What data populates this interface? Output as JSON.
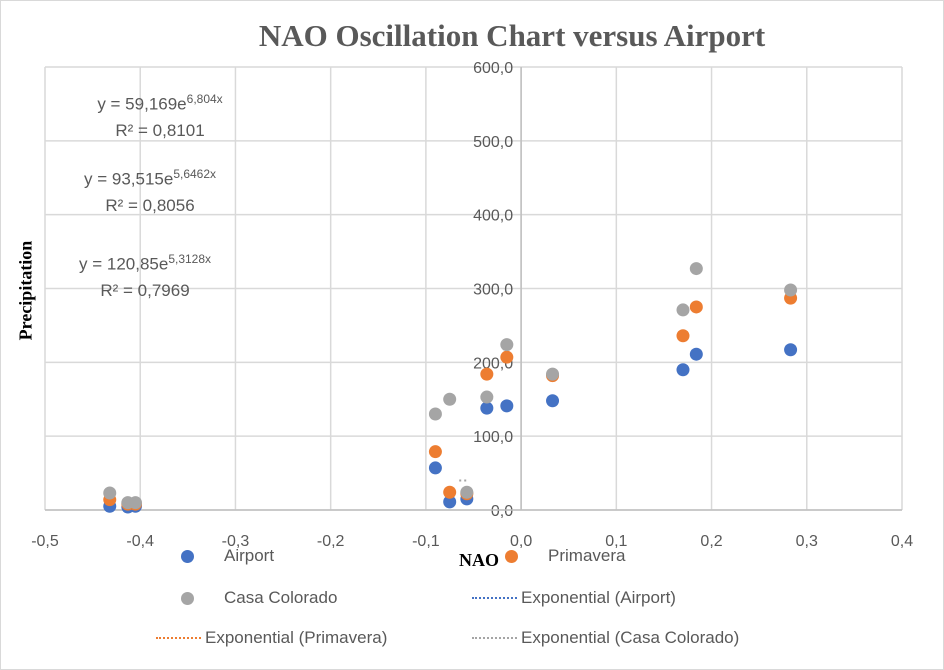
{
  "chart_data": {
    "type": "scatter",
    "title": "NAO Oscillation Chart versus Airport",
    "xlabel": "NAO",
    "ylabel": "Precipitation",
    "xlim": [
      -0.5,
      0.4
    ],
    "ylim": [
      0,
      600
    ],
    "x_ticks": [
      "-0,5",
      "-0,4",
      "-0,3",
      "-0,2",
      "-0,1",
      "0,0",
      "0,1",
      "0,2",
      "0,3",
      "0,4"
    ],
    "y_ticks": [
      "0,0",
      "100,0",
      "200,0",
      "300,0",
      "400,0",
      "500,0",
      "600,0"
    ],
    "grid": true,
    "legend_position": "bottom",
    "x": [
      -0.432,
      -0.413,
      -0.405,
      -0.09,
      -0.075,
      -0.057,
      -0.036,
      -0.015,
      0.033,
      0.17,
      0.184,
      0.283
    ],
    "series": [
      {
        "name": "Airport",
        "color": "#4472c4",
        "values": [
          5,
          4,
          5,
          57,
          11,
          15,
          138,
          141,
          148,
          190,
          211,
          217
        ]
      },
      {
        "name": "Primavera",
        "color": "#ed7d31",
        "values": [
          14,
          8,
          8,
          79,
          24,
          22,
          184,
          207,
          182,
          236,
          275,
          287
        ]
      },
      {
        "name": "Casa Colorado",
        "color": "#a5a5a5",
        "values": [
          23,
          10,
          10,
          130,
          150,
          24,
          153,
          224,
          184,
          271,
          327,
          298
        ]
      }
    ],
    "trendlines": [
      {
        "name": "Exponential (Airport)",
        "color": "#4472c4",
        "equation": "y = 59,169e",
        "exponent": "6,804x",
        "r2": "R² = 0,8101"
      },
      {
        "name": "Exponential (Primavera)",
        "color": "#ed7d31",
        "equation": "y = 93,515e",
        "exponent": "5,6462x",
        "r2": "R² = 0,8056"
      },
      {
        "name": "Exponential (Casa Colorado)",
        "color": "#a5a5a5",
        "equation": "y = 120,85e",
        "exponent": "5,3128x",
        "r2": "R² = 0,7969"
      }
    ]
  }
}
